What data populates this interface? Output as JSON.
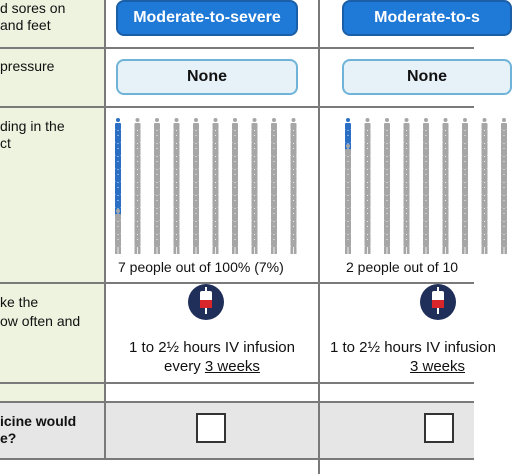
{
  "rows": {
    "sores": {
      "label_lines": [
        "d sores on",
        "and feet"
      ],
      "option_a": "Moderate-to-severe",
      "option_b": "Moderate-to-s"
    },
    "pressure": {
      "label_lines": [
        "pressure"
      ],
      "option_a": "None",
      "option_b": "None"
    },
    "bleeding": {
      "label_lines": [
        "ding in the",
        "ct"
      ],
      "option_a": {
        "caption": "7 people out of 100% (7%)",
        "affected": 7,
        "total": 100
      },
      "option_b": {
        "caption": "2 people out of 10",
        "affected": 2,
        "total": 100
      },
      "colors": {
        "affected": "#2a6fc4",
        "unaffected": "#a6a6a6"
      }
    },
    "administration": {
      "label_lines": [
        "ke the",
        "ow often and"
      ],
      "icon": "iv-drip-icon",
      "option_a": {
        "line1": "1 to 2½ hours IV infusion",
        "line2_prefix": "every ",
        "line2_link": "3 weeks"
      },
      "option_b": {
        "line1": "1 to 2½ hours IV infusion",
        "line2_link": "3 weeks"
      }
    },
    "choice": {
      "label_lines": [
        "icine would",
        "e?"
      ]
    }
  },
  "colors": {
    "pill_dark": "#1f79d6",
    "pill_light": "#e6f1f8",
    "label_bg": "#eef3df",
    "border": "#7a7a7a"
  }
}
